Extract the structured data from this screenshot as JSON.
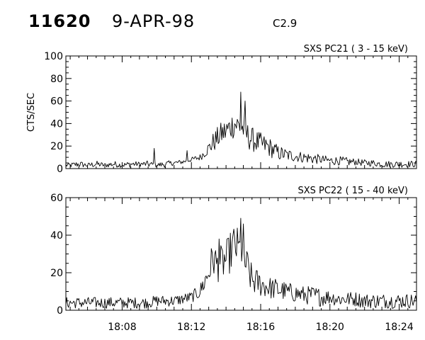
{
  "header": {
    "event_id": "11620",
    "date": "9-APR-98",
    "flare_class": "C2.9"
  },
  "chart_data": [
    {
      "type": "line",
      "title": "SXS PC21 ( 3 - 15 keV)",
      "ylabel": "CTS/SEC",
      "xlabel": "",
      "ylim": [
        0,
        100
      ],
      "yticks": [
        0,
        20,
        40,
        60,
        80,
        100
      ],
      "xlim": [
        "18:04:45",
        "18:25:00"
      ],
      "xticks": [
        "18:08",
        "18:12",
        "18:16",
        "18:20",
        "18:24"
      ],
      "grid": false,
      "series": [
        {
          "x": [
            "18:05",
            "18:05:30",
            "18:06",
            "18:06:30",
            "18:07",
            "18:07:30",
            "18:08",
            "18:08:30",
            "18:09",
            "18:09:30",
            "18:10",
            "18:10:30",
            "18:11",
            "18:11:30",
            "18:12",
            "18:12:30",
            "18:13",
            "18:13:15",
            "18:13:30",
            "18:13:45",
            "18:14",
            "18:14:15",
            "18:14:30",
            "18:14:45",
            "18:15",
            "18:15:15",
            "18:15:30",
            "18:16",
            "18:16:30",
            "18:17",
            "18:17:30",
            "18:18",
            "18:18:30",
            "18:19",
            "18:19:30",
            "18:20",
            "18:20:30",
            "18:21",
            "18:21:30",
            "18:22",
            "18:22:30",
            "18:23",
            "18:23:30",
            "18:24",
            "18:24:30",
            "18:25"
          ],
          "y": [
            3,
            4,
            3,
            4,
            3,
            4,
            3,
            4,
            4,
            4,
            3,
            4,
            5,
            6,
            8,
            10,
            18,
            23,
            27,
            31,
            33,
            37,
            40,
            38,
            35,
            29,
            26,
            22,
            19,
            14,
            12,
            11,
            10,
            9,
            8,
            7,
            7,
            6,
            6,
            5,
            5,
            4,
            4,
            4,
            4,
            4
          ],
          "noise": [
            2,
            3,
            2,
            3,
            2,
            3,
            2,
            3,
            2,
            3,
            2,
            3,
            2,
            2,
            2,
            3,
            6,
            9,
            10,
            11,
            12,
            12,
            13,
            12,
            12,
            12,
            11,
            10,
            9,
            7,
            6,
            5,
            5,
            5,
            4,
            4,
            4,
            4,
            3,
            3,
            3,
            3,
            3,
            3,
            3,
            3
          ],
          "spikes": [
            [
              "18:09:50",
              18
            ],
            [
              "18:11:45",
              16
            ],
            [
              "18:14:50",
              68
            ],
            [
              "18:15:05",
              60
            ]
          ]
        }
      ]
    },
    {
      "type": "line",
      "title": "SXS PC22 ( 15 - 40 keV)",
      "ylabel": "",
      "xlabel": "",
      "ylim": [
        0,
        60
      ],
      "yticks": [
        0,
        20,
        40,
        60
      ],
      "xlim": [
        "18:04:45",
        "18:25:00"
      ],
      "xticks": [
        "18:08",
        "18:12",
        "18:16",
        "18:20",
        "18:24"
      ],
      "grid": false,
      "series": [
        {
          "x": [
            "18:05",
            "18:05:30",
            "18:06",
            "18:06:30",
            "18:07",
            "18:07:30",
            "18:08",
            "18:08:30",
            "18:09",
            "18:09:30",
            "18:10",
            "18:10:30",
            "18:11",
            "18:11:30",
            "18:12",
            "18:12:30",
            "18:13",
            "18:13:15",
            "18:13:30",
            "18:13:45",
            "18:14",
            "18:14:15",
            "18:14:30",
            "18:14:45",
            "18:15",
            "18:15:15",
            "18:15:30",
            "18:16",
            "18:16:30",
            "18:17",
            "18:17:30",
            "18:18",
            "18:18:30",
            "18:19",
            "18:19:30",
            "18:20",
            "18:20:30",
            "18:21",
            "18:21:30",
            "18:22",
            "18:22:30",
            "18:23",
            "18:23:30",
            "18:24",
            "18:24:30",
            "18:25"
          ],
          "y": [
            4,
            4,
            4,
            4,
            4,
            4,
            4,
            4,
            4,
            4,
            5,
            5,
            5,
            6,
            7,
            10,
            20,
            28,
            24,
            25,
            27,
            31,
            35,
            32,
            28,
            22,
            16,
            14,
            12,
            11,
            10,
            9,
            8,
            8,
            7,
            7,
            6,
            6,
            6,
            5,
            5,
            5,
            5,
            5,
            5,
            5
          ],
          "noise": [
            3,
            3,
            3,
            3,
            3,
            3,
            3,
            3,
            3,
            3,
            3,
            3,
            3,
            3,
            3,
            4,
            8,
            10,
            9,
            10,
            10,
            11,
            12,
            11,
            11,
            10,
            8,
            7,
            6,
            6,
            5,
            5,
            5,
            5,
            5,
            4,
            4,
            4,
            4,
            4,
            4,
            4,
            4,
            4,
            4,
            4
          ],
          "spikes": [
            [
              "18:13:35",
              38
            ],
            [
              "18:14:50",
              49
            ],
            [
              "18:15:00",
              46
            ]
          ]
        }
      ]
    }
  ]
}
